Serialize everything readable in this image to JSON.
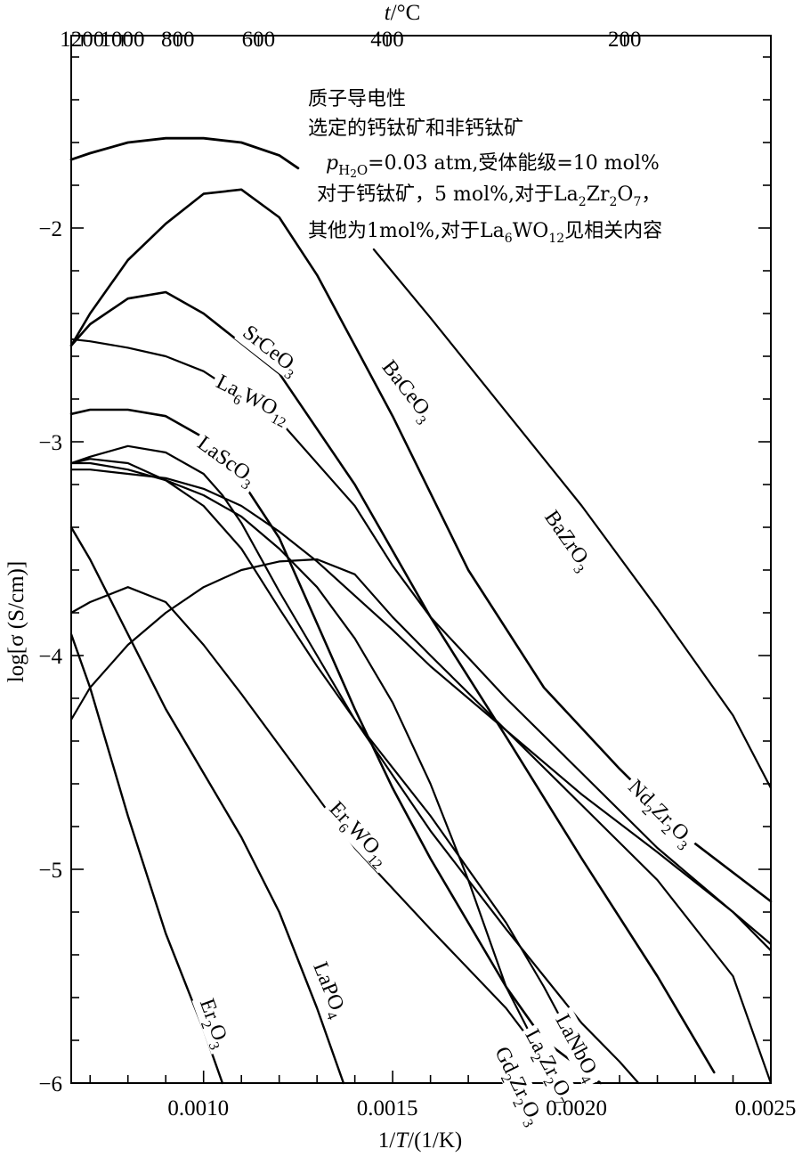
{
  "chart_data": {
    "type": "line",
    "xlabel": "1/T/(1/K)",
    "ylabel": "log[σ (S/cm)]",
    "top_axis_label": "t/°C",
    "xlim": [
      0.00065,
      0.0025
    ],
    "ylim": [
      -6,
      -1.1
    ],
    "log_y": true,
    "x_ticks": [
      {
        "value": 0.001,
        "label": "0.0010"
      },
      {
        "value": 0.0015,
        "label": "0.0015"
      },
      {
        "value": 0.002,
        "label": "0.0020"
      },
      {
        "value": 0.0025,
        "label": "0.0025"
      }
    ],
    "y_ticks": [
      {
        "value": -2,
        "label": "−2"
      },
      {
        "value": -3,
        "label": "−3"
      },
      {
        "value": -4,
        "label": "−4"
      },
      {
        "value": -5,
        "label": "−5"
      },
      {
        "value": -6,
        "label": "−6"
      }
    ],
    "top_ticks": [
      {
        "celsius": 1200,
        "label": "1200"
      },
      {
        "celsius": 1000,
        "label": "1000"
      },
      {
        "celsius": 800,
        "label": "800"
      },
      {
        "celsius": 600,
        "label": "600"
      },
      {
        "celsius": 400,
        "label": "400"
      },
      {
        "celsius": 200,
        "label": "200"
      }
    ],
    "annotation_lines": [
      "质子导电性",
      "选定的钙钛矿和非钙钛矿",
      "pH2O=0.03 atm,受体能级=10 mol%",
      "对于钙钛矿，5 mol%,对于La2Zr2O7，",
      "其他为1mol%,对于La6WO12见相关内容"
    ],
    "series": [
      {
        "name": "BaZrO3",
        "width": 2.8,
        "x": [
          0.00065,
          0.0007,
          0.0008,
          0.0009,
          0.001,
          0.0011,
          0.0012,
          0.00125
        ],
        "y": [
          -1.68,
          -1.65,
          -1.6,
          -1.58,
          -1.58,
          -1.6,
          -1.66,
          -1.72
        ]
      },
      {
        "name": "BaZrO3",
        "width": 2.2,
        "x": [
          0.00145,
          0.0016,
          0.0018,
          0.002,
          0.0022,
          0.0024,
          0.0025
        ],
        "y": [
          -2.1,
          -2.42,
          -2.86,
          -3.3,
          -3.78,
          -4.28,
          -4.62
        ]
      },
      {
        "name": "BaCeO3",
        "width": 2.6,
        "x": [
          0.00065,
          0.0007,
          0.0008,
          0.0009,
          0.001,
          0.0011,
          0.0012,
          0.0013,
          0.0015,
          0.0017,
          0.0019,
          0.0021,
          0.0023,
          0.0025
        ],
        "y": [
          -2.55,
          -2.4,
          -2.15,
          -1.98,
          -1.84,
          -1.82,
          -1.95,
          -2.22,
          -2.88,
          -3.6,
          -4.15,
          -4.53,
          -4.88,
          -5.15
        ]
      },
      {
        "name": "SrCeO3",
        "width": 2.6,
        "x": [
          0.00065,
          0.0007,
          0.0008,
          0.0009,
          0.001,
          0.0012,
          0.0014,
          0.0016,
          0.0018,
          0.002,
          0.0022,
          0.00235
        ],
        "y": [
          -2.55,
          -2.45,
          -2.33,
          -2.3,
          -2.4,
          -2.68,
          -3.2,
          -3.82,
          -4.38,
          -4.95,
          -5.5,
          -5.95
        ]
      },
      {
        "name": "La6WO12",
        "width": 2.2,
        "x": [
          0.00065,
          0.0007,
          0.0008,
          0.0009,
          0.001,
          0.0012,
          0.0014,
          0.0015,
          0.0016,
          0.0018,
          0.002,
          0.0022,
          0.0024,
          0.0025
        ],
        "y": [
          -2.52,
          -2.53,
          -2.56,
          -2.6,
          -2.67,
          -2.9,
          -3.3,
          -3.58,
          -3.82,
          -4.2,
          -4.55,
          -4.9,
          -5.2,
          -5.38
        ]
      },
      {
        "name": "LaScO3",
        "width": 2.6,
        "x": [
          0.00065,
          0.0007,
          0.0008,
          0.0009,
          0.001,
          0.0011,
          0.0012,
          0.0013,
          0.0014,
          0.0015,
          0.0016,
          0.0017,
          0.0018,
          0.0019,
          0.00205
        ],
        "y": [
          -2.87,
          -2.85,
          -2.85,
          -2.88,
          -2.98,
          -3.18,
          -3.45,
          -3.85,
          -4.25,
          -4.62,
          -4.95,
          -5.25,
          -5.55,
          -5.8,
          -6.0
        ]
      },
      {
        "name": "Nd2Zr2O3",
        "width": 2.2,
        "x": [
          0.00065,
          0.0007,
          0.0008,
          0.0009,
          0.001,
          0.0011,
          0.0012,
          0.0013,
          0.0014,
          0.0015,
          0.0016,
          0.0018,
          0.002,
          0.0022,
          0.0024,
          0.0025
        ],
        "y": [
          -3.13,
          -3.13,
          -3.15,
          -3.17,
          -3.22,
          -3.3,
          -3.42,
          -3.56,
          -3.72,
          -3.88,
          -4.05,
          -4.35,
          -4.65,
          -4.92,
          -5.2,
          -5.35
        ]
      },
      {
        "name": "LaNbO4",
        "width": 2.2,
        "x": [
          0.00065,
          0.0007,
          0.0008,
          0.0009,
          0.001,
          0.00105,
          0.0011,
          0.0012,
          0.0013,
          0.0014,
          0.0016,
          0.0018,
          0.0019,
          0.002,
          0.0021,
          0.00215
        ],
        "y": [
          -3.1,
          -3.07,
          -3.02,
          -3.05,
          -3.15,
          -3.25,
          -3.38,
          -3.7,
          -4.0,
          -4.3,
          -4.82,
          -5.28,
          -5.5,
          -5.72,
          -5.9,
          -6.0
        ]
      },
      {
        "name": "La2Zr2O7",
        "width": 2.2,
        "x": [
          0.00065,
          0.0007,
          0.0008,
          0.0009,
          0.001,
          0.0011,
          0.0012,
          0.0013,
          0.0014,
          0.0016,
          0.0018,
          0.0019,
          0.002,
          0.00203
        ],
        "y": [
          -3.1,
          -3.08,
          -3.1,
          -3.18,
          -3.3,
          -3.5,
          -3.78,
          -4.05,
          -4.3,
          -4.75,
          -5.25,
          -5.55,
          -5.88,
          -6.0
        ]
      },
      {
        "name": "Gd2Zr2O3",
        "width": 2.2,
        "x": [
          0.00065,
          0.0007,
          0.0008,
          0.0009,
          0.001,
          0.0011,
          0.0012,
          0.0013,
          0.0014,
          0.0015,
          0.0016,
          0.0017,
          0.0018,
          0.00193
        ],
        "y": [
          -3.1,
          -3.1,
          -3.13,
          -3.18,
          -3.25,
          -3.35,
          -3.5,
          -3.68,
          -3.92,
          -4.22,
          -4.6,
          -5.05,
          -5.55,
          -6.0
        ]
      },
      {
        "name": "Er6WO12",
        "width": 2.2,
        "x": [
          0.00065,
          0.0007,
          0.0008,
          0.0009,
          0.001,
          0.0011,
          0.0012,
          0.0013,
          0.0014,
          0.0016,
          0.0018,
          0.00195
        ],
        "y": [
          -3.8,
          -3.75,
          -3.68,
          -3.75,
          -3.95,
          -4.18,
          -4.42,
          -4.66,
          -4.9,
          -5.28,
          -5.65,
          -6.0
        ]
      },
      {
        "name": "",
        "width": 2.2,
        "x": [
          0.00065,
          0.0007,
          0.0008,
          0.0009,
          0.001,
          0.0011,
          0.0012,
          0.0013,
          0.0014,
          0.0015,
          0.0016,
          0.0018,
          0.002,
          0.0022,
          0.0024,
          0.0025
        ],
        "y": [
          -4.3,
          -4.15,
          -3.95,
          -3.8,
          -3.68,
          -3.6,
          -3.56,
          -3.55,
          -3.62,
          -3.82,
          -4.0,
          -4.35,
          -4.7,
          -5.05,
          -5.5,
          -6.0
        ]
      },
      {
        "name": "LaPO4",
        "width": 2.4,
        "x": [
          0.00065,
          0.0007,
          0.0008,
          0.0009,
          0.001,
          0.0011,
          0.0012,
          0.0013,
          0.00137
        ],
        "y": [
          -3.4,
          -3.55,
          -3.9,
          -4.25,
          -4.55,
          -4.85,
          -5.2,
          -5.65,
          -6.0
        ]
      },
      {
        "name": "Er2O3",
        "width": 2.4,
        "x": [
          0.00065,
          0.0007,
          0.0008,
          0.0009,
          0.001,
          0.00105
        ],
        "y": [
          -3.9,
          -4.15,
          -4.75,
          -5.3,
          -5.75,
          -6.0
        ]
      }
    ],
    "labels": [
      {
        "text": "BaZrO3",
        "x": 0.0019,
        "y": -3.35,
        "angle": 55,
        "series": "BaZrO3"
      },
      {
        "text": "BaCeO3",
        "x": 0.00147,
        "y": -2.65,
        "angle": 52,
        "series": "BaCeO3"
      },
      {
        "text": "SrCeO3",
        "x": 0.0011,
        "y": -2.5,
        "angle": 38,
        "series": "SrCeO3"
      },
      {
        "text": "La6WO12",
        "x": 0.00103,
        "y": -2.74,
        "angle": 27,
        "series": "La6WO12"
      },
      {
        "text": "LaScO3",
        "x": 0.00098,
        "y": -3.02,
        "angle": 36,
        "series": "LaScO3"
      },
      {
        "text": "Nd2Zr2O3",
        "x": 0.00212,
        "y": -4.62,
        "angle": 45,
        "series": "Nd2Zr2O3"
      },
      {
        "text": "LaNbO4",
        "x": 0.00193,
        "y": -5.7,
        "angle": 62,
        "series": "LaNbO4"
      },
      {
        "text": "La2Zr2O7",
        "x": 0.00185,
        "y": -5.77,
        "angle": 62,
        "series": "La2Zr2O7"
      },
      {
        "text": "Gd2Zr2O3",
        "x": 0.00177,
        "y": -5.85,
        "angle": 64,
        "series": "Gd2Zr2O3"
      },
      {
        "text": "Er6WO12",
        "x": 0.00133,
        "y": -4.72,
        "angle": 47,
        "series": "Er6WO12"
      },
      {
        "text": "LaPO4",
        "x": 0.00129,
        "y": -5.45,
        "angle": 68,
        "series": "LaPO4"
      },
      {
        "text": "Er2O3",
        "x": 0.00099,
        "y": -5.62,
        "angle": 70,
        "series": "Er2O3"
      }
    ]
  }
}
